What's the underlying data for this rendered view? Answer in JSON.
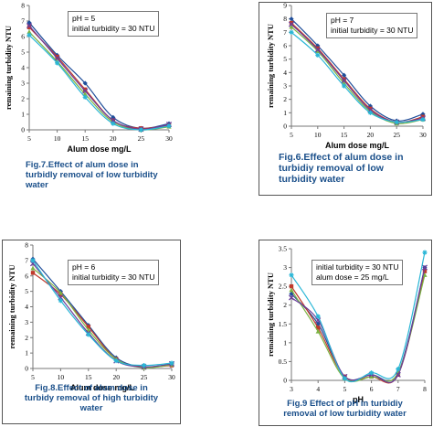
{
  "chart_data": [
    {
      "type": "line",
      "ylabel": "remaining turbidity NTU",
      "xlabel": "Alum dose mg/L",
      "legend": [
        "pH = 5",
        "initial turbidity = 30 NTU"
      ],
      "caption": [
        "Fig.7.Effect of alum dose in",
        "turbidly removal of low turbidity",
        "water"
      ],
      "x": [
        5,
        10,
        15,
        20,
        25,
        30
      ],
      "xlim": [
        5,
        30
      ],
      "ylim": [
        0,
        8
      ],
      "yticks": [
        0,
        1,
        2,
        3,
        4,
        5,
        6,
        7,
        8
      ],
      "xticks": [
        5,
        10,
        15,
        20,
        25,
        30
      ],
      "series": [
        {
          "values": [
            6.9,
            4.8,
            3.0,
            0.8,
            0.1,
            0.4
          ],
          "color": "#1f4e9a"
        },
        {
          "values": [
            6.6,
            4.7,
            2.6,
            0.6,
            0.1,
            0.3
          ],
          "color": "#c0392b"
        },
        {
          "values": [
            6.3,
            4.4,
            2.3,
            0.5,
            0.0,
            0.2
          ],
          "color": "#7cb342"
        },
        {
          "values": [
            6.7,
            4.6,
            2.5,
            0.6,
            0.05,
            0.35
          ],
          "color": "#6a3d9a"
        },
        {
          "values": [
            6.1,
            4.3,
            2.1,
            0.4,
            0.0,
            0.25
          ],
          "color": "#29b6d6"
        }
      ]
    },
    {
      "type": "line",
      "ylabel": "remaining turbidity NTU",
      "xlabel": "Alum dose mg/L",
      "legend": [
        "pH = 7",
        "initial turbidity = 30 NTU"
      ],
      "caption": [
        "Fig.6.Effect of alum dose in",
        "turbidiy removal of low",
        "turbidity water"
      ],
      "x": [
        5,
        10,
        15,
        20,
        25,
        30
      ],
      "xlim": [
        5,
        30
      ],
      "ylim": [
        0,
        9
      ],
      "yticks": [
        0,
        1,
        2,
        3,
        4,
        5,
        6,
        7,
        8,
        9
      ],
      "xticks": [
        5,
        10,
        15,
        20,
        25,
        30
      ],
      "series": [
        {
          "values": [
            8.0,
            6.0,
            3.8,
            1.5,
            0.4,
            0.9
          ],
          "color": "#1f4e9a"
        },
        {
          "values": [
            7.7,
            5.8,
            3.5,
            1.3,
            0.3,
            0.7
          ],
          "color": "#c0392b"
        },
        {
          "values": [
            7.4,
            5.6,
            3.2,
            1.1,
            0.2,
            0.5
          ],
          "color": "#7cb342"
        },
        {
          "values": [
            7.6,
            5.7,
            3.4,
            1.2,
            0.3,
            0.6
          ],
          "color": "#6a3d9a"
        },
        {
          "values": [
            7.0,
            5.3,
            3.0,
            1.0,
            0.3,
            0.5
          ],
          "color": "#29b6d6"
        }
      ]
    },
    {
      "type": "line",
      "ylabel": "remaining turbidity NTU",
      "xlabel": "Alum dose mg/L",
      "legend": [
        "pH = 6",
        "initial turbidity = 30 NTU"
      ],
      "caption": [
        "Fig.8.Effect of alum dose in",
        "turbidy removal of high turbidity",
        "water"
      ],
      "x": [
        5,
        10,
        15,
        20,
        25,
        30
      ],
      "xlim": [
        5,
        30
      ],
      "ylim": [
        0,
        8
      ],
      "yticks": [
        0,
        1,
        2,
        3,
        4,
        5,
        6,
        7,
        8
      ],
      "xticks": [
        5,
        10,
        15,
        20,
        25,
        30
      ],
      "series": [
        {
          "values": [
            7.1,
            5.0,
            2.8,
            0.7,
            0.1,
            0.3
          ],
          "color": "#1f4e9a"
        },
        {
          "values": [
            6.2,
            4.8,
            2.7,
            0.6,
            0.1,
            0.2
          ],
          "color": "#c0392b"
        },
        {
          "values": [
            6.5,
            4.9,
            2.5,
            0.6,
            0.05,
            0.25
          ],
          "color": "#7cb342"
        },
        {
          "values": [
            6.8,
            4.6,
            2.3,
            0.5,
            0.1,
            0.3
          ],
          "color": "#6a3d9a"
        },
        {
          "values": [
            7.0,
            4.4,
            2.2,
            0.5,
            0.2,
            0.35
          ],
          "color": "#29b6d6"
        }
      ]
    },
    {
      "type": "line",
      "ylabel": "remaining turbidity NTU",
      "xlabel": "pH",
      "legend": [
        "initial turbidity = 30 NTU",
        "alum dose = 25 mg/L"
      ],
      "caption": [
        "Fig.9 Effect of pH in turbidiy",
        "removal of low turbidity water"
      ],
      "x": [
        3,
        4,
        5,
        6,
        7,
        8
      ],
      "xlim": [
        3,
        8
      ],
      "ylim": [
        0,
        3.5
      ],
      "yticks": [
        0,
        0.5,
        1,
        1.5,
        2,
        2.5,
        3,
        3.5
      ],
      "xticks": [
        3,
        4,
        5,
        6,
        7,
        8
      ],
      "series": [
        {
          "values": [
            2.3,
            1.5,
            0.1,
            0.15,
            0.2,
            3.0
          ],
          "color": "#1f4e9a"
        },
        {
          "values": [
            2.5,
            1.4,
            0.1,
            0.1,
            0.15,
            2.9
          ],
          "color": "#c0392b"
        },
        {
          "values": [
            2.4,
            1.3,
            0.05,
            0.1,
            0.2,
            2.8
          ],
          "color": "#7cb342"
        },
        {
          "values": [
            2.2,
            1.6,
            0.1,
            0.15,
            0.15,
            3.0
          ],
          "color": "#6a3d9a"
        },
        {
          "values": [
            2.8,
            1.7,
            0.05,
            0.2,
            0.3,
            3.4
          ],
          "color": "#29b6d6"
        }
      ]
    }
  ]
}
